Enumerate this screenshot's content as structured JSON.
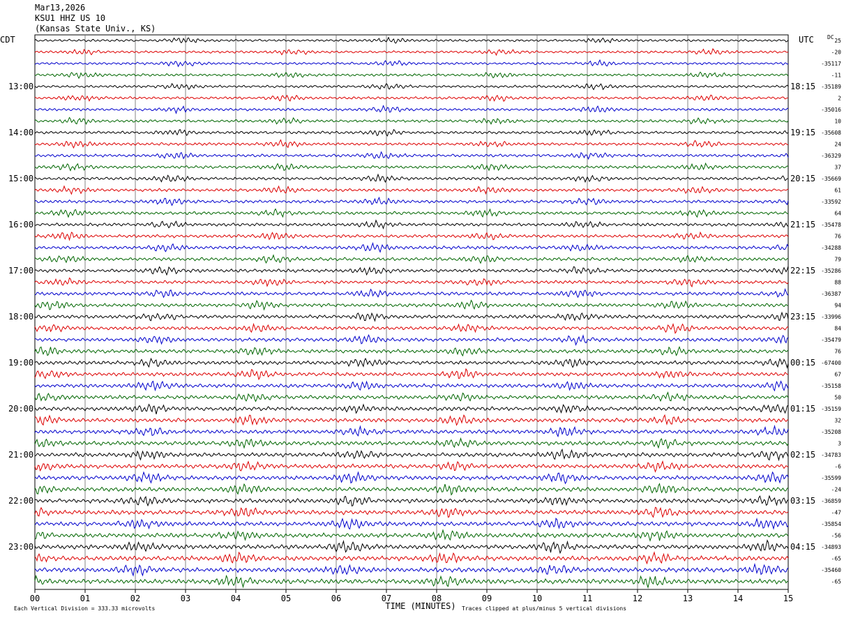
{
  "header": {
    "date": "Mar13,2026",
    "station": "KSU1 HHZ US 10",
    "location": "(Kansas State Univ., KS)"
  },
  "chart_data": {
    "type": "line",
    "title": "Mar13,2026 KSU1 HHZ US 10 (Kansas State Univ., KS)",
    "xlabel": "TIME (MINUTES)",
    "left_axis_label": "CDT",
    "right_axis_label": "UTC",
    "dc_label": "DC",
    "xlim": [
      0,
      15
    ],
    "x_ticks": [
      "00",
      "01",
      "02",
      "03",
      "04",
      "05",
      "06",
      "07",
      "08",
      "09",
      "10",
      "11",
      "12",
      "13",
      "14",
      "15"
    ],
    "trace_colors": [
      "#000000",
      "#dd0000",
      "#0000cc",
      "#006600"
    ],
    "trace_count": 48,
    "left_hour_labels": [
      "13:00",
      "14:00",
      "15:00",
      "16:00",
      "17:00",
      "18:00",
      "19:00",
      "20:00",
      "21:00",
      "22:00",
      "23:00"
    ],
    "right_hour_labels": [
      "18:15",
      "19:15",
      "20:15",
      "21:15",
      "22:15",
      "23:15",
      "00:15",
      "01:15",
      "02:15",
      "03:15",
      "04:15"
    ],
    "dc_offsets": [
      "25",
      "-20",
      "-35117",
      "-11",
      "-35189",
      "2",
      "-35016",
      "10",
      "-35608",
      "24",
      "-36329",
      "37",
      "-35669",
      "61",
      "-33592",
      "64",
      "-35478",
      "76",
      "-34288",
      "79",
      "-35286",
      "88",
      "-36387",
      "94",
      "-33996",
      "84",
      "-35479",
      "76",
      "-67400",
      "67",
      "-35158",
      "50",
      "-35159",
      "32",
      "-35208",
      "3",
      "-34783",
      "-6",
      "-35599",
      "-24",
      "-36859",
      "-47",
      "-35854",
      "-56",
      "-34893",
      "-65",
      "-35460",
      "-65"
    ],
    "footer_left": "Each Vertical Division =  333.33 microvolts",
    "footer_right": "Traces clipped at plus/minus 5 vertical divisions"
  }
}
